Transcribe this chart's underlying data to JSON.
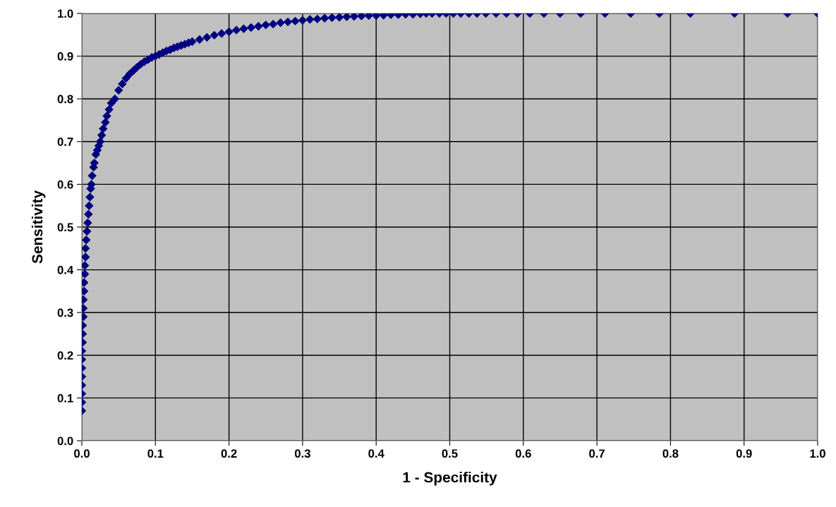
{
  "chart_data": {
    "type": "scatter",
    "xlabel": "1 - Specificity",
    "ylabel": "Sensitivity",
    "marker": "diamond",
    "grid": true,
    "legend": false,
    "xlim": [
      0,
      1
    ],
    "ylim": [
      0,
      1
    ],
    "xticks": [
      {
        "value": 0,
        "label": "0.0"
      },
      {
        "value": 0.1,
        "label": "0.1"
      },
      {
        "value": 0.2,
        "label": "0.2"
      },
      {
        "value": 0.3,
        "label": "0.3"
      },
      {
        "value": 0.4,
        "label": "0.4"
      },
      {
        "value": 0.5,
        "label": "0.5"
      },
      {
        "value": 0.6,
        "label": "0.6"
      },
      {
        "value": 0.7,
        "label": "0.7"
      },
      {
        "value": 0.8,
        "label": "0.8"
      },
      {
        "value": 0.9,
        "label": "0.9"
      },
      {
        "value": 1,
        "label": "1.0"
      }
    ],
    "yticks": [
      {
        "value": 0,
        "label": "0.0"
      },
      {
        "value": 0.1,
        "label": "0.1"
      },
      {
        "value": 0.2,
        "label": "0.2"
      },
      {
        "value": 0.3,
        "label": "0.3"
      },
      {
        "value": 0.4,
        "label": "0.4"
      },
      {
        "value": 0.5,
        "label": "0.5"
      },
      {
        "value": 0.6,
        "label": "0.6"
      },
      {
        "value": 0.7,
        "label": "0.7"
      },
      {
        "value": 0.8,
        "label": "0.8"
      },
      {
        "value": 0.9,
        "label": "0.9"
      },
      {
        "value": 1,
        "label": "1.0"
      }
    ],
    "series": [
      {
        "color": "#000080",
        "x": [
          0,
          0,
          0,
          0,
          0,
          0,
          0,
          0,
          0.001,
          0.001,
          0.001,
          0.002,
          0.002,
          0.002,
          0.003,
          0.003,
          0.004,
          0.004,
          0.005,
          0.005,
          0.006,
          0.007,
          0.008,
          0.009,
          0.01,
          0.011,
          0.012,
          0.013,
          0.014,
          0.016,
          0.017,
          0.019,
          0.021,
          0.023,
          0.025,
          0.027,
          0.029,
          0.032,
          0.034,
          0.037,
          0.04,
          0.045,
          0.05,
          0.055,
          0.06,
          0.065,
          0.07,
          0.075,
          0.08,
          0.085,
          0.09,
          0.095,
          0.1,
          0.105,
          0.11,
          0.115,
          0.12,
          0.125,
          0.13,
          0.135,
          0.14,
          0.145,
          0.15,
          0.16,
          0.17,
          0.18,
          0.19,
          0.2,
          0.21,
          0.22,
          0.23,
          0.24,
          0.25,
          0.26,
          0.27,
          0.28,
          0.29,
          0.3,
          0.31,
          0.32,
          0.33,
          0.34,
          0.35,
          0.36,
          0.37,
          0.38,
          0.39,
          0.4,
          0.41,
          0.42,
          0.43,
          0.44,
          0.45,
          0.46,
          0.468,
          0.476,
          0.486,
          0.495,
          0.505,
          0.515,
          0.526,
          0.537,
          0.549,
          0.563,
          0.577,
          0.592,
          0.609,
          0.628,
          0.65,
          0.678,
          0.711,
          0.746,
          0.785,
          0.827,
          0.887,
          0.959,
          1
        ],
        "values": [
          0.07,
          0.09,
          0.11,
          0.13,
          0.15,
          0.17,
          0.19,
          0.21,
          0.23,
          0.25,
          0.27,
          0.29,
          0.31,
          0.33,
          0.35,
          0.37,
          0.39,
          0.41,
          0.43,
          0.45,
          0.47,
          0.49,
          0.51,
          0.53,
          0.55,
          0.57,
          0.59,
          0.6,
          0.62,
          0.64,
          0.65,
          0.67,
          0.68,
          0.69,
          0.7,
          0.715,
          0.73,
          0.745,
          0.76,
          0.775,
          0.79,
          0.8,
          0.82,
          0.835,
          0.848,
          0.858,
          0.866,
          0.874,
          0.881,
          0.887,
          0.892,
          0.897,
          0.9,
          0.904,
          0.908,
          0.912,
          0.915,
          0.919,
          0.922,
          0.925,
          0.928,
          0.931,
          0.934,
          0.939,
          0.944,
          0.949,
          0.953,
          0.957,
          0.961,
          0.964,
          0.967,
          0.97,
          0.973,
          0.975,
          0.978,
          0.98,
          0.982,
          0.984,
          0.986,
          0.987,
          0.989,
          0.99,
          0.991,
          0.992,
          0.993,
          0.994,
          0.995,
          0.995,
          0.996,
          0.997,
          0.997,
          0.998,
          0.998,
          0.999,
          1,
          1,
          1,
          1,
          1,
          1,
          1,
          1,
          1,
          1,
          1,
          1,
          1,
          1,
          1,
          1,
          1,
          1,
          1,
          1,
          1,
          1,
          1
        ]
      }
    ]
  }
}
